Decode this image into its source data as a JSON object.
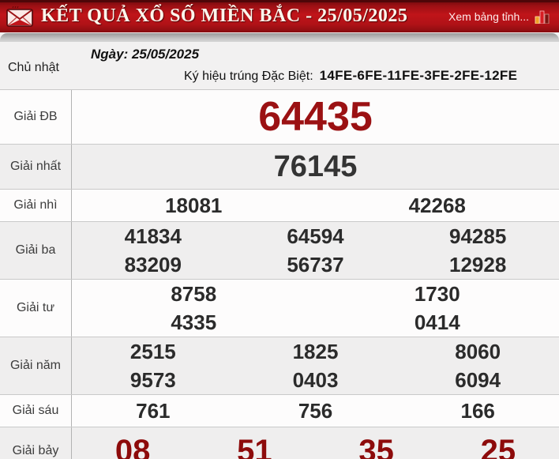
{
  "header": {
    "title": "KẾT QUẢ XỔ SỐ MIỀN BẮC - 25/05/2025",
    "link_label": "Xem bảng tỉnh...",
    "icons": [
      "envelope-icon",
      "chart-icon"
    ]
  },
  "info": {
    "weekday": "Chủ nhật",
    "date_label": "Ngày: 25/05/2025",
    "symbol_label": "Ký hiệu trúng Đặc Biệt:",
    "symbol_value": "14FE-6FE-11FE-3FE-2FE-12FE"
  },
  "results": {
    "rows": [
      {
        "label": "Giải ĐB",
        "style": "special",
        "lines": [
          [
            "64435"
          ]
        ]
      },
      {
        "label": "Giải nhất",
        "style": "first",
        "lines": [
          [
            "76145"
          ]
        ]
      },
      {
        "label": "Giải nhì",
        "style": "normal",
        "lines": [
          [
            "18081",
            "42268"
          ]
        ]
      },
      {
        "label": "Giải ba",
        "style": "normal",
        "lines": [
          [
            "41834",
            "64594",
            "94285"
          ],
          [
            "83209",
            "56737",
            "12928"
          ]
        ]
      },
      {
        "label": "Giải tư",
        "style": "normal",
        "lines": [
          [
            "8758",
            "1730"
          ],
          [
            "4335",
            "0414"
          ]
        ]
      },
      {
        "label": "Giải năm",
        "style": "normal",
        "lines": [
          [
            "2515",
            "1825",
            "8060"
          ],
          [
            "9573",
            "0403",
            "6094"
          ]
        ]
      },
      {
        "label": "Giải sáu",
        "style": "normal",
        "lines": [
          [
            "761",
            "756",
            "166"
          ]
        ]
      },
      {
        "label": "Giải bảy",
        "style": "seventh",
        "lines": [
          [
            "08",
            "51",
            "35",
            "25"
          ]
        ]
      }
    ]
  },
  "colors": {
    "header_red": "#b01217",
    "special_number_red": "#9b1113",
    "seventh_number_red": "#8d0b0b",
    "number_dark": "#2b2b2b",
    "row_alt_gray": "#efeeee"
  }
}
